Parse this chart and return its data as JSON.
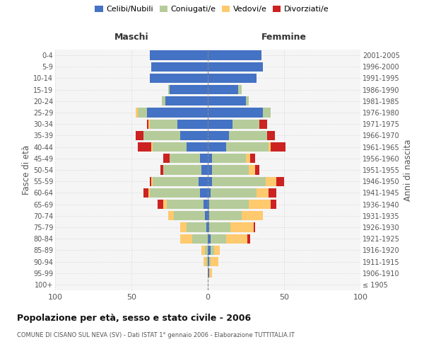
{
  "age_groups": [
    "100+",
    "95-99",
    "90-94",
    "85-89",
    "80-84",
    "75-79",
    "70-74",
    "65-69",
    "60-64",
    "55-59",
    "50-54",
    "45-49",
    "40-44",
    "35-39",
    "30-34",
    "25-29",
    "20-24",
    "15-19",
    "10-14",
    "5-9",
    "0-4"
  ],
  "birth_years": [
    "≤ 1905",
    "1906-1910",
    "1911-1915",
    "1916-1920",
    "1921-1925",
    "1926-1930",
    "1931-1935",
    "1936-1940",
    "1941-1945",
    "1946-1950",
    "1951-1955",
    "1956-1960",
    "1961-1965",
    "1966-1970",
    "1971-1975",
    "1976-1980",
    "1981-1985",
    "1986-1990",
    "1991-1995",
    "1996-2000",
    "2001-2005"
  ],
  "colors": {
    "celibi": "#4472c4",
    "coniugati": "#b5cc9a",
    "vedovi": "#ffc96e",
    "divorziati": "#cc2222"
  },
  "maschi": {
    "celibi": [
      0,
      0,
      0,
      0,
      0,
      1,
      2,
      3,
      5,
      6,
      4,
      5,
      14,
      18,
      20,
      40,
      28,
      25,
      38,
      37,
      38
    ],
    "coniugati": [
      0,
      0,
      1,
      2,
      10,
      13,
      20,
      24,
      33,
      30,
      25,
      20,
      22,
      24,
      18,
      6,
      2,
      1,
      0,
      0,
      0
    ],
    "vedovi": [
      0,
      0,
      2,
      2,
      8,
      4,
      4,
      2,
      1,
      1,
      0,
      0,
      1,
      0,
      1,
      1,
      0,
      0,
      0,
      0,
      0
    ],
    "divorziati": [
      0,
      0,
      0,
      0,
      0,
      0,
      0,
      4,
      3,
      1,
      2,
      4,
      9,
      5,
      1,
      0,
      0,
      0,
      0,
      0,
      0
    ]
  },
  "femmine": {
    "celibi": [
      0,
      1,
      1,
      2,
      2,
      1,
      1,
      1,
      2,
      3,
      3,
      3,
      12,
      14,
      16,
      36,
      25,
      20,
      32,
      36,
      35
    ],
    "coniugati": [
      0,
      0,
      1,
      2,
      10,
      14,
      21,
      26,
      30,
      35,
      24,
      22,
      28,
      25,
      18,
      5,
      2,
      2,
      0,
      0,
      0
    ],
    "vedovi": [
      0,
      2,
      5,
      4,
      14,
      15,
      14,
      14,
      8,
      7,
      4,
      3,
      1,
      0,
      0,
      0,
      0,
      0,
      0,
      0,
      0
    ],
    "divorziati": [
      0,
      0,
      0,
      0,
      2,
      1,
      0,
      4,
      5,
      5,
      3,
      3,
      10,
      5,
      5,
      0,
      0,
      0,
      0,
      0,
      0
    ]
  },
  "xlim": 100,
  "title": "Popolazione per età, sesso e stato civile - 2006",
  "subtitle": "COMUNE DI CISANO SUL NEVA (SV) - Dati ISTAT 1° gennaio 2006 - Elaborazione TUTTITALIA.IT",
  "ylabel_left": "Fasce di età",
  "ylabel_right": "Anni di nascita",
  "legend_labels": [
    "Celibi/Nubili",
    "Coniugati/e",
    "Vedovi/e",
    "Divorziati/e"
  ],
  "maschi_label": "Maschi",
  "femmine_label": "Femmine",
  "bg_color": "#f5f5f5"
}
